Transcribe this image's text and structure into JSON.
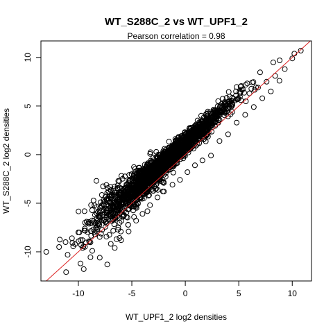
{
  "chart_data": {
    "type": "scatter",
    "title": "WT_S288C_2 vs WT_UPF1_2",
    "subtitle": "Pearson correlation =  0.98",
    "xlabel": "WT_UPF1_2 log2 densities",
    "ylabel": "WT_S288C_2 log2 densities",
    "xlim": [
      -13.5,
      11.8
    ],
    "ylim": [
      -13.0,
      11.7
    ],
    "xticks": [
      "-10",
      "-5",
      "0",
      "5",
      "10"
    ],
    "yticks": [
      "-10",
      "-5",
      "0",
      "5",
      "10"
    ],
    "point_style": "open circle",
    "point_color": "#000000",
    "reference_line": {
      "type": "identity",
      "slope": 1,
      "intercept": 0,
      "color": "#dd2222"
    },
    "grid": false,
    "legend": "none",
    "points": [
      [
        -13.0,
        -10.0
      ],
      [
        -11.8,
        -9.5
      ],
      [
        -11.2,
        -9.0
      ],
      [
        -11.0,
        -10.3
      ],
      [
        -10.6,
        -8.6
      ],
      [
        -10.3,
        -9.2
      ],
      [
        -10.0,
        -8.0
      ],
      [
        -9.8,
        -11.2
      ],
      [
        -9.6,
        -9.6
      ],
      [
        -9.4,
        -7.6
      ],
      [
        -9.0,
        -8.9
      ],
      [
        -8.7,
        -9.9
      ],
      [
        -8.4,
        -7.1
      ],
      [
        -8.0,
        -10.6
      ],
      [
        -7.6,
        -6.8
      ],
      [
        -7.3,
        -11.3
      ],
      [
        -7.0,
        -5.5
      ],
      [
        -6.6,
        -9.6
      ],
      [
        -6.3,
        -4.6
      ],
      [
        -6.0,
        -8.8
      ],
      [
        -5.6,
        -4.1
      ],
      [
        -5.3,
        -7.9
      ],
      [
        -5.0,
        -3.6
      ],
      [
        -4.6,
        -6.8
      ],
      [
        -4.3,
        -2.9
      ],
      [
        -4.0,
        -6.1
      ],
      [
        -3.6,
        -2.3
      ],
      [
        -3.3,
        -5.2
      ],
      [
        -3.0,
        -1.6
      ],
      [
        -2.6,
        -4.4
      ],
      [
        -2.2,
        -0.9
      ],
      [
        -2.0,
        -3.8
      ],
      [
        -1.6,
        -0.4
      ],
      [
        -1.2,
        -3.1
      ],
      [
        -0.9,
        0.6
      ],
      [
        -0.5,
        -2.6
      ],
      [
        -0.2,
        1.3
      ],
      [
        0.2,
        -1.8
      ],
      [
        0.5,
        1.9
      ],
      [
        0.9,
        -1.1
      ],
      [
        1.3,
        2.6
      ],
      [
        1.6,
        -0.6
      ],
      [
        2.0,
        3.2
      ],
      [
        2.4,
        -0.1
      ],
      [
        2.8,
        3.9
      ],
      [
        3.2,
        1.4
      ],
      [
        3.6,
        4.6
      ],
      [
        4.0,
        2.1
      ],
      [
        4.4,
        5.1
      ],
      [
        4.8,
        3.3
      ],
      [
        5.2,
        5.6
      ],
      [
        5.6,
        4.1
      ],
      [
        6.0,
        6.3
      ],
      [
        6.4,
        4.9
      ],
      [
        6.8,
        6.9
      ],
      [
        7.2,
        5.8
      ],
      [
        7.6,
        7.5
      ],
      [
        8.0,
        6.5
      ],
      [
        8.4,
        8.1
      ],
      [
        8.8,
        7.6
      ],
      [
        9.3,
        8.8
      ],
      [
        10.0,
        9.9
      ],
      [
        10.2,
        10.4
      ],
      [
        10.8,
        10.7
      ]
    ]
  }
}
